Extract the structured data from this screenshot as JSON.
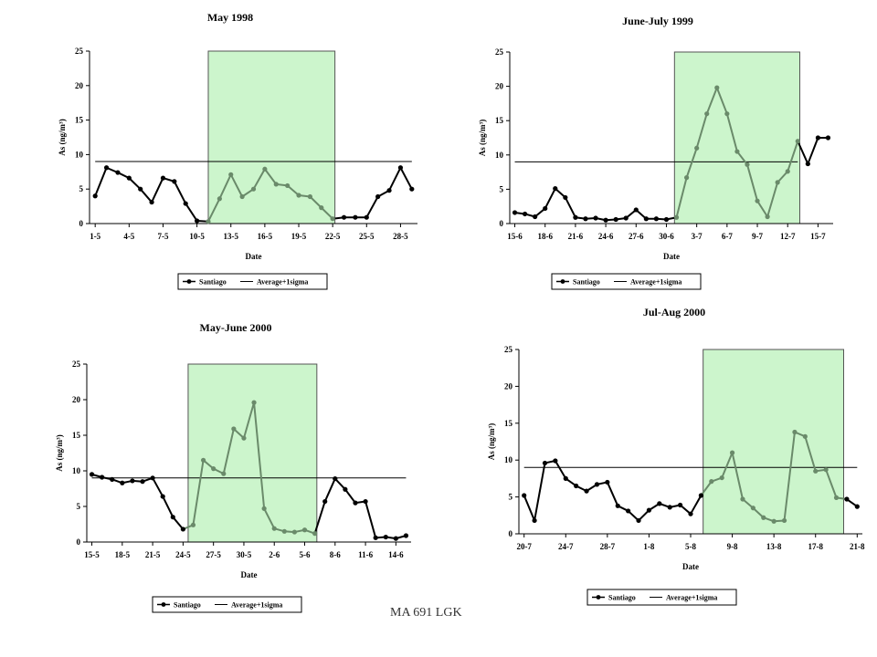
{
  "footer": "MA 691 LGK",
  "legend": {
    "series1": "Santiago",
    "series2": "Average+1sigma"
  },
  "colors": {
    "highlight_fill": "#ccf5cc",
    "highlight_stroke": "#555555",
    "in_window_line": "#6a8a6a",
    "out_window_line": "#000000",
    "threshold_line": "#000000"
  },
  "chart_data": [
    {
      "type": "line",
      "title": "May 1998",
      "xlabel": "Date",
      "ylabel": "As (ng/m³)",
      "ylim": [
        0,
        25
      ],
      "yticks": [
        0,
        5,
        10,
        15,
        20,
        25
      ],
      "x_tick_labels": [
        "1-5",
        "4-5",
        "7-5",
        "10-5",
        "13-5",
        "16-5",
        "19-5",
        "22-5",
        "25-5",
        "28-5"
      ],
      "highlight_range": [
        11.0,
        22.2
      ],
      "grid": false,
      "legend_position": "bottom",
      "series": [
        {
          "name": "Santiago",
          "x": [
            1,
            2,
            3,
            4,
            5,
            6,
            7,
            8,
            9,
            10,
            11,
            12,
            13,
            14,
            15,
            16,
            17,
            18,
            19,
            20,
            21,
            22,
            23,
            24,
            25,
            26,
            27,
            28,
            29
          ],
          "values": [
            4,
            8.1,
            7.4,
            6.6,
            5,
            3.1,
            6.6,
            6.1,
            2.9,
            0.4,
            0.3,
            3.6,
            7.1,
            3.9,
            5.0,
            7.9,
            5.7,
            5.5,
            4.1,
            3.9,
            2.3,
            0.7,
            0.9,
            0.9,
            0.9,
            3.9,
            4.8,
            8.1,
            5.0
          ]
        },
        {
          "name": "Average+1sigma",
          "x": [
            1,
            29
          ],
          "values": [
            9,
            9
          ]
        }
      ]
    },
    {
      "type": "line",
      "title": "June-July 1999",
      "xlabel": "Date",
      "ylabel": "As (ng/m³)",
      "ylim": [
        0,
        25
      ],
      "yticks": [
        0,
        5,
        10,
        15,
        20,
        25
      ],
      "x_tick_labels": [
        "15-6",
        "18-6",
        "21-6",
        "24-6",
        "27-6",
        "30-6",
        "3-7",
        "6-7",
        "9-7",
        "12-7",
        "15-7"
      ],
      "highlight_range": [
        30.8,
        43.2
      ],
      "grid": false,
      "legend_position": "bottom",
      "series": [
        {
          "name": "Santiago",
          "x": [
            15,
            16,
            17,
            18,
            19,
            20,
            21,
            22,
            23,
            24,
            25,
            26,
            27,
            28,
            29,
            30,
            31,
            32,
            33,
            34,
            35,
            36,
            37,
            38,
            39,
            40,
            41,
            42,
            43,
            44,
            45,
            46
          ],
          "values": [
            1.6,
            1.4,
            1.0,
            2.2,
            5.1,
            3.8,
            0.9,
            0.7,
            0.8,
            0.5,
            0.6,
            0.8,
            2.0,
            0.7,
            0.7,
            0.6,
            0.9,
            6.7,
            11.0,
            16.0,
            19.8,
            16.0,
            10.5,
            8.6,
            3.3,
            1.0,
            6.0,
            7.6,
            12.0,
            8.7,
            12.5,
            12.5
          ]
        },
        {
          "name": "Average+1sigma",
          "x": [
            15,
            43
          ],
          "values": [
            9,
            9
          ]
        }
      ]
    },
    {
      "type": "line",
      "title": "May-June 2000",
      "xlabel": "Date",
      "ylabel": "As (ng/m³)",
      "ylim": [
        0,
        25
      ],
      "yticks": [
        0,
        5,
        10,
        15,
        20,
        25
      ],
      "x_tick_labels": [
        "15-5",
        "18-5",
        "21-5",
        "24-5",
        "27-5",
        "30-5",
        "2-6",
        "5-6",
        "8-6",
        "11-6",
        "14-6"
      ],
      "highlight_range": [
        24.5,
        37.2
      ],
      "grid": false,
      "legend_position": "bottom",
      "series": [
        {
          "name": "Santiago",
          "x": [
            15,
            16,
            17,
            18,
            19,
            20,
            21,
            22,
            23,
            24,
            25,
            26,
            27,
            28,
            29,
            30,
            31,
            32,
            33,
            34,
            35,
            36,
            37,
            38,
            39,
            40,
            41,
            42,
            43,
            44,
            45,
            46
          ],
          "values": [
            9.5,
            9.1,
            8.8,
            8.3,
            8.6,
            8.5,
            9.0,
            6.4,
            3.5,
            1.8,
            2.4,
            11.5,
            10.3,
            9.6,
            15.9,
            14.6,
            19.6,
            4.7,
            1.9,
            1.5,
            1.4,
            1.7,
            1.2,
            5.7,
            8.9,
            7.4,
            5.5,
            5.7,
            0.6,
            0.7,
            0.5,
            0.9
          ]
        },
        {
          "name": "Average+1sigma",
          "x": [
            15,
            46
          ],
          "values": [
            9,
            9
          ]
        }
      ]
    },
    {
      "type": "line",
      "title": "Jul-Aug 2000",
      "xlabel": "Date",
      "ylabel": "As (ng/m³)",
      "ylim": [
        0,
        25
      ],
      "yticks": [
        0,
        5,
        10,
        15,
        20,
        25
      ],
      "x_tick_labels": [
        "20-7",
        "24-7",
        "28-7",
        "1-8",
        "5-8",
        "9-8",
        "13-8",
        "17-8",
        "21-8"
      ],
      "highlight_range": [
        37.2,
        50.7
      ],
      "grid": false,
      "legend_position": "bottom",
      "series": [
        {
          "name": "Santiago",
          "x": [
            20,
            21,
            22,
            23,
            24,
            25,
            26,
            27,
            28,
            29,
            30,
            31,
            32,
            33,
            34,
            35,
            36,
            37,
            38,
            39,
            40,
            41,
            42,
            43,
            44,
            45,
            46,
            47,
            48,
            49,
            50,
            51,
            52
          ],
          "values": [
            5.2,
            1.8,
            9.6,
            9.9,
            7.5,
            6.5,
            5.8,
            6.7,
            7.0,
            3.8,
            3.1,
            1.8,
            3.2,
            4.1,
            3.6,
            3.9,
            2.7,
            5.2,
            7.1,
            7.6,
            11.0,
            4.7,
            3.5,
            2.2,
            1.7,
            1.8,
            13.8,
            13.2,
            8.5,
            8.7,
            4.9,
            4.7,
            3.7
          ]
        },
        {
          "name": "Average+1sigma",
          "x": [
            20,
            52
          ],
          "values": [
            9,
            9
          ]
        }
      ]
    }
  ]
}
